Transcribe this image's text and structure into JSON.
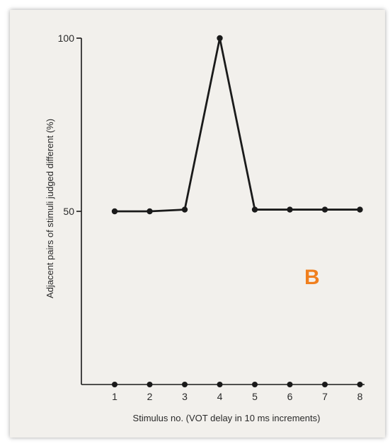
{
  "chart_data": {
    "type": "line",
    "panel_label": "B",
    "xlabel": "Stimulus no. (VOT delay in 10 ms increments)",
    "ylabel": "Adjacent pairs of stimuli judged different (%)",
    "x_ticks": [
      "1",
      "2",
      "3",
      "4",
      "5",
      "6",
      "7",
      "8"
    ],
    "y_ticks": [
      "100",
      "50"
    ],
    "ylim": [
      0,
      100
    ],
    "grid": false,
    "series": [
      {
        "x": [
          1,
          2,
          3,
          4,
          5,
          6,
          7,
          8
        ],
        "values": [
          50,
          50,
          50.5,
          100,
          50.5,
          50.5,
          50.5,
          50.5
        ]
      }
    ],
    "baseline_points": {
      "x": [
        1,
        2,
        3,
        4,
        5,
        6,
        7,
        8
      ],
      "values": [
        0,
        0,
        0,
        0,
        0,
        0,
        0,
        0
      ]
    }
  },
  "colors": {
    "ink": "#1a1a1a",
    "paper": "#f2f0ec",
    "panel_letter": "#f07f1e"
  }
}
